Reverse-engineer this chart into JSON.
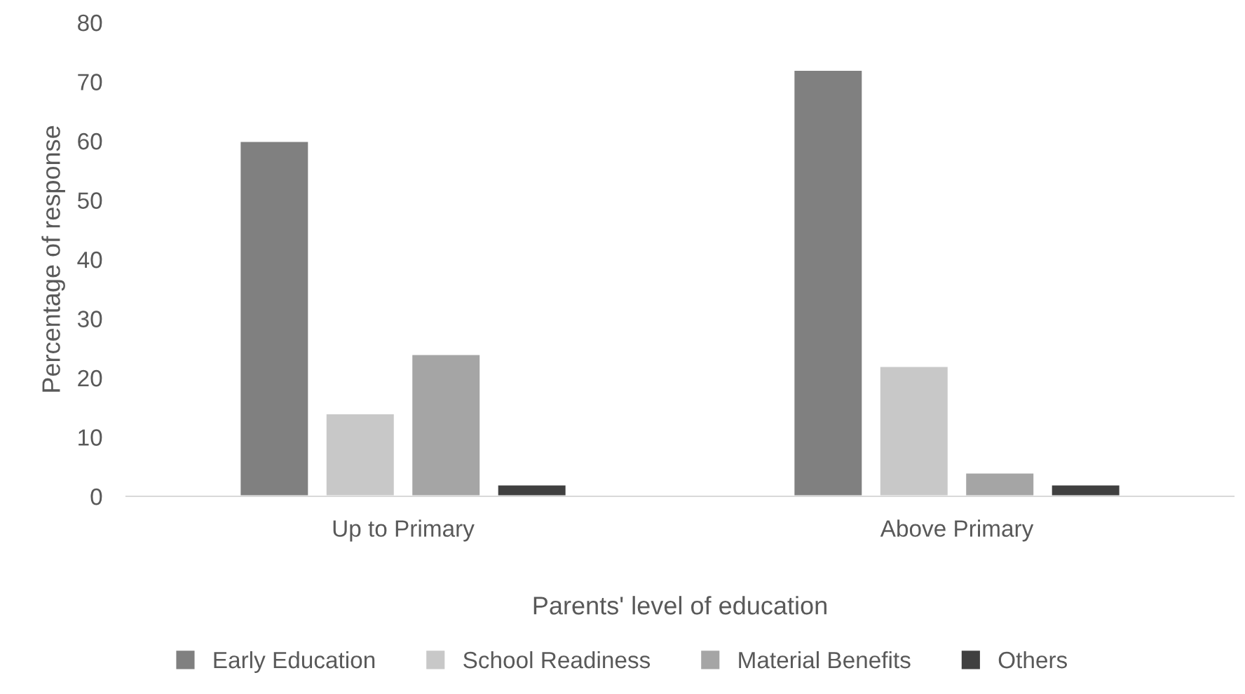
{
  "chart_data": {
    "type": "bar",
    "xlabel": "Parents' level of education",
    "ylabel": "Percentage of response",
    "categories": [
      "Up to Primary",
      "Above Primary"
    ],
    "series": [
      {
        "name": "Early Education",
        "color": "#808080",
        "values": [
          60,
          72
        ]
      },
      {
        "name": "School Readiness",
        "color": "#c8c8c8",
        "values": [
          14,
          22
        ]
      },
      {
        "name": "Material Benefits",
        "color": "#a5a5a5",
        "values": [
          24,
          4
        ]
      },
      {
        "name": "Others",
        "color": "#404040",
        "values": [
          2,
          2
        ]
      }
    ],
    "ylim": [
      0,
      80
    ],
    "yticks": [
      0,
      10,
      20,
      30,
      40,
      50,
      60,
      70,
      80
    ],
    "grid": false,
    "legend": "bottom"
  }
}
